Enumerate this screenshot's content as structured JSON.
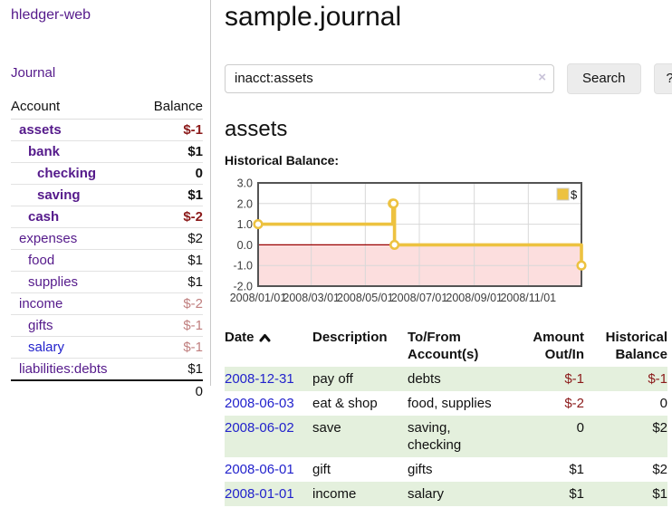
{
  "sidebar": {
    "app_title": "hledger-web",
    "journal_label": "Journal",
    "accounts_table": {
      "headers": {
        "account": "Account",
        "balance": "Balance"
      },
      "rows": [
        {
          "name": "assets",
          "balance": "$-1",
          "indent": 1,
          "bold": true,
          "link_color": "purple",
          "balance_color": "dark-red"
        },
        {
          "name": "bank",
          "balance": "$1",
          "indent": 2,
          "bold": true,
          "link_color": "purple",
          "balance_color": "black"
        },
        {
          "name": "checking",
          "balance": "0",
          "indent": 3,
          "bold": true,
          "link_color": "purple",
          "balance_color": "black"
        },
        {
          "name": "saving",
          "balance": "$1",
          "indent": 3,
          "bold": true,
          "link_color": "purple",
          "balance_color": "black"
        },
        {
          "name": "cash",
          "balance": "$-2",
          "indent": 2,
          "bold": true,
          "link_color": "purple",
          "balance_color": "dark-red"
        },
        {
          "name": "expenses",
          "balance": "$2",
          "indent": 1,
          "bold": false,
          "link_color": "purple",
          "balance_color": "black"
        },
        {
          "name": "food",
          "balance": "$1",
          "indent": 2,
          "bold": false,
          "link_color": "purple",
          "balance_color": "black"
        },
        {
          "name": "supplies",
          "balance": "$1",
          "indent": 2,
          "bold": false,
          "link_color": "purple",
          "balance_color": "black"
        },
        {
          "name": "income",
          "balance": "$-2",
          "indent": 1,
          "bold": false,
          "link_color": "purple",
          "balance_color": "pale-red"
        },
        {
          "name": "gifts",
          "balance": "$-1",
          "indent": 2,
          "bold": false,
          "link_color": "purple",
          "balance_color": "pale-red"
        },
        {
          "name": "salary",
          "balance": "$-1",
          "indent": 2,
          "bold": false,
          "link_color": "blue",
          "balance_color": "pale-red"
        },
        {
          "name": "liabilities:debts",
          "balance": "$1",
          "indent": 1,
          "bold": false,
          "link_color": "purple",
          "balance_color": "black"
        }
      ],
      "total": "0"
    }
  },
  "header": {
    "title": "sample.journal"
  },
  "search": {
    "value": "inacct:assets",
    "clear_icon": "×",
    "search_button": "Search",
    "help_button": "?"
  },
  "account_page": {
    "heading": "assets",
    "chart_label": "Historical Balance:"
  },
  "chart_data": {
    "type": "line",
    "step": true,
    "title": "Historical Balance",
    "ylim": [
      -2,
      3
    ],
    "x_range": [
      "2008-01-01",
      "2008-12-31"
    ],
    "y_ticks": [
      3.0,
      2.0,
      1.0,
      0.0,
      -1.0,
      -2.0
    ],
    "y_tick_labels": [
      "3.0",
      "2.0",
      "1.0",
      "0.0",
      "-1.0",
      "-2.0"
    ],
    "x_ticks": [
      {
        "date": "2008-01-01",
        "label": "2008/01/01"
      },
      {
        "date": "2008-03-01",
        "label": "2008/03/01"
      },
      {
        "date": "2008-05-01",
        "label": "2008/05/01"
      },
      {
        "date": "2008-07-01",
        "label": "2008/07/01"
      },
      {
        "date": "2008-09-01",
        "label": "2008/09/01"
      },
      {
        "date": "2008-11-01",
        "label": "2008/11/01"
      }
    ],
    "series": [
      {
        "name": "$",
        "color": "#EDC240",
        "points": [
          {
            "date": "2008-01-01",
            "value": 1
          },
          {
            "date": "2008-06-01",
            "value": 2
          },
          {
            "date": "2008-06-02",
            "value": 2
          },
          {
            "date": "2008-06-03",
            "value": 0
          },
          {
            "date": "2008-12-31",
            "value": -1
          }
        ]
      }
    ],
    "legend": {
      "label": "$",
      "position": "top-right"
    },
    "colors": {
      "grid": "#d8d8d8",
      "border": "#545454",
      "negative_region": "#fcdede",
      "zero_line": "#990000"
    }
  },
  "register_table": {
    "headers": {
      "date": "Date",
      "description": "Description",
      "tofrom": "To/From Account(s)",
      "amount": "Amount Out/In",
      "historical": "Historical Balance"
    },
    "rows": [
      {
        "date": "2008-12-31",
        "description": "pay off",
        "accounts": "debts",
        "amount": "$-1",
        "amount_negative": true,
        "balance": "$-1",
        "balance_negative": true,
        "shaded": true
      },
      {
        "date": "2008-06-03",
        "description": "eat & shop",
        "accounts": "food, supplies",
        "amount": "$-2",
        "amount_negative": true,
        "balance": "0",
        "balance_negative": false,
        "shaded": false
      },
      {
        "date": "2008-06-02",
        "description": "save",
        "accounts": "saving, checking",
        "amount": "0",
        "amount_negative": false,
        "balance": "$2",
        "balance_negative": false,
        "shaded": true
      },
      {
        "date": "2008-06-01",
        "description": "gift",
        "accounts": "gifts",
        "amount": "$1",
        "amount_negative": false,
        "balance": "$2",
        "balance_negative": false,
        "shaded": false
      },
      {
        "date": "2008-01-01",
        "description": "income",
        "accounts": "salary",
        "amount": "$1",
        "amount_negative": false,
        "balance": "$1",
        "balance_negative": false,
        "shaded": true
      }
    ]
  }
}
